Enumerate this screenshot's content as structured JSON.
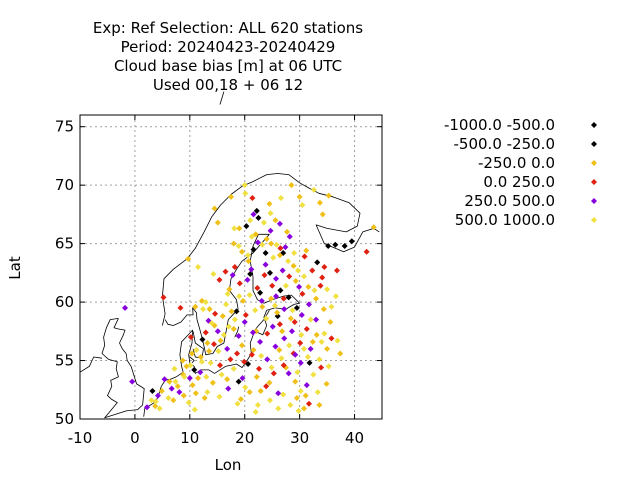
{
  "chart_data": {
    "type": "scatter",
    "title_lines": [
      "Exp: Ref   Selection: ALL    620 stations",
      "Period: 20240423-20240429",
      "Cloud base bias [m] at  06 UTC",
      "Used  00,18  + 06 12"
    ],
    "xlabel": "Lon",
    "ylabel": "Lat",
    "xlim": [
      -10,
      45
    ],
    "ylim": [
      50,
      76
    ],
    "xticks": [
      -10,
      0,
      10,
      20,
      30,
      40
    ],
    "yticks": [
      50,
      55,
      60,
      65,
      70,
      75
    ],
    "grid": true,
    "legend_position": "right",
    "series": [
      {
        "name": "-1000.0 -500.0",
        "color": "#000000",
        "points": [
          [
            22.5,
            67.2
          ],
          [
            23.8,
            64.2
          ],
          [
            35.2,
            64.8
          ],
          [
            38.2,
            64.8
          ],
          [
            39.5,
            65.2
          ],
          [
            3.2,
            52.4
          ],
          [
            20.3,
            66.5
          ],
          [
            26.5,
            61.0
          ],
          [
            28.0,
            60.4
          ],
          [
            22.8,
            60.8
          ],
          [
            29.5,
            59.5
          ],
          [
            26.0,
            58.8
          ],
          [
            21.0,
            62.4
          ],
          [
            18.5,
            59.2
          ]
        ]
      },
      {
        "name": "-500.0 -250.0",
        "color": "#000000",
        "points": [
          [
            22.2,
            67.8
          ],
          [
            36.5,
            64.9
          ],
          [
            33.2,
            63.4
          ],
          [
            21.6,
            64.5
          ],
          [
            27.0,
            64.2
          ],
          [
            12.3,
            56.8
          ],
          [
            10.8,
            54.2
          ],
          [
            20.6,
            54.7
          ],
          [
            24.6,
            62.5
          ],
          [
            31.8,
            54.8
          ],
          [
            18.9,
            53.2
          ]
        ]
      },
      {
        "name": "-250.0 0.0",
        "color": "#f0c018",
        "points": [
          [
            24.5,
            68.4
          ],
          [
            25.6,
            67.0
          ],
          [
            27.7,
            66.0
          ],
          [
            33.7,
            68.5
          ],
          [
            34.2,
            67.5
          ],
          [
            35.3,
            69.1
          ],
          [
            43.5,
            66.4
          ],
          [
            19.0,
            66.3
          ],
          [
            18.0,
            65.0
          ],
          [
            22.0,
            65.8
          ],
          [
            24.0,
            65.4
          ],
          [
            26.4,
            64.0
          ],
          [
            28.9,
            63.1
          ],
          [
            9.7,
            63.7
          ],
          [
            11.0,
            59.6
          ],
          [
            12.2,
            60.1
          ],
          [
            13.6,
            59.4
          ],
          [
            16.0,
            58.8
          ],
          [
            17.6,
            59.2
          ],
          [
            14.5,
            58.0
          ],
          [
            13.2,
            56.5
          ],
          [
            15.6,
            56.7
          ],
          [
            10.4,
            55.6
          ],
          [
            12.0,
            55.3
          ],
          [
            8.7,
            55.0
          ],
          [
            9.4,
            54.5
          ],
          [
            6.3,
            53.2
          ],
          [
            4.9,
            52.4
          ],
          [
            7.0,
            51.6
          ],
          [
            7.8,
            52.8
          ],
          [
            8.9,
            52.0
          ],
          [
            10.5,
            52.9
          ],
          [
            11.5,
            53.5
          ],
          [
            12.7,
            51.8
          ],
          [
            14.2,
            53.1
          ],
          [
            16.8,
            53.4
          ],
          [
            19.3,
            51.7
          ],
          [
            20.9,
            52.3
          ],
          [
            22.9,
            52.4
          ],
          [
            24.5,
            53.1
          ],
          [
            26.3,
            55.9
          ],
          [
            27.5,
            54.4
          ],
          [
            29.2,
            53.2
          ],
          [
            31.1,
            52.0
          ],
          [
            30.8,
            50.9
          ],
          [
            29.5,
            51.8
          ],
          [
            33.6,
            51.2
          ],
          [
            34.9,
            53.0
          ],
          [
            35.0,
            56.0
          ],
          [
            33.1,
            57.2
          ],
          [
            32.4,
            56.6
          ],
          [
            34.4,
            59.4
          ],
          [
            35.6,
            58.3
          ],
          [
            33.0,
            60.3
          ],
          [
            31.6,
            61.3
          ],
          [
            29.3,
            61.8
          ],
          [
            28.4,
            58.6
          ],
          [
            26.8,
            57.5
          ],
          [
            25.9,
            59.1
          ],
          [
            24.8,
            60.3
          ],
          [
            23.2,
            59.6
          ],
          [
            22.1,
            57.5
          ],
          [
            21.6,
            55.9
          ],
          [
            19.5,
            56.3
          ],
          [
            18.0,
            57.7
          ],
          [
            17.2,
            61.1
          ],
          [
            19.7,
            60.1
          ],
          [
            20.7,
            63.5
          ],
          [
            19.5,
            64.3
          ],
          [
            30.0,
            69.0
          ],
          [
            28.5,
            70.0
          ],
          [
            14.5,
            68.0
          ],
          [
            15.1,
            66.8
          ],
          [
            17.5,
            69.0
          ],
          [
            31.2,
            64.4
          ],
          [
            24.8,
            65.0
          ],
          [
            8.8,
            53.8
          ],
          [
            11.1,
            52.2
          ],
          [
            3.7,
            51.1
          ],
          [
            13.5,
            55.8
          ],
          [
            22.2,
            53.6
          ],
          [
            37.4,
            55.6
          ]
        ]
      },
      {
        "name": "0.0 250.0",
        "color": "#e02010",
        "points": [
          [
            21.4,
            68.9
          ],
          [
            42.2,
            64.3
          ],
          [
            36.8,
            62.7
          ],
          [
            34.1,
            62.1
          ],
          [
            33.8,
            61.4
          ],
          [
            32.3,
            62.7
          ],
          [
            28.1,
            62.2
          ],
          [
            30.5,
            60.7
          ],
          [
            18.2,
            63.0
          ],
          [
            16.5,
            62.6
          ],
          [
            15.4,
            61.9
          ],
          [
            22.3,
            61.2
          ],
          [
            23.6,
            62.3
          ],
          [
            25.0,
            61.4
          ],
          [
            27.1,
            60.3
          ],
          [
            29.1,
            58.3
          ],
          [
            31.3,
            57.7
          ],
          [
            30.1,
            56.5
          ],
          [
            28.9,
            55.6
          ],
          [
            27.1,
            54.6
          ],
          [
            25.3,
            53.9
          ],
          [
            23.9,
            52.8
          ],
          [
            22.6,
            54.3
          ],
          [
            21.3,
            55.5
          ],
          [
            19.9,
            54.9
          ],
          [
            18.6,
            55.6
          ],
          [
            17.4,
            55.1
          ],
          [
            15.5,
            54.6
          ],
          [
            14.4,
            56.4
          ],
          [
            12.9,
            57.4
          ],
          [
            10.2,
            57.0
          ],
          [
            5.2,
            60.4
          ],
          [
            8.3,
            59.5
          ],
          [
            31.7,
            51.3
          ],
          [
            33.9,
            54.4
          ],
          [
            35.8,
            56.9
          ],
          [
            26.4,
            58.1
          ],
          [
            20.2,
            58.9
          ],
          [
            24.1,
            57.3
          ],
          [
            30.9,
            63.9
          ],
          [
            26.5,
            64.6
          ],
          [
            19.1,
            61.6
          ],
          [
            14.6,
            59.0
          ],
          [
            34.5,
            63.0
          ]
        ]
      },
      {
        "name": "250.0 500.0",
        "color": "#8800dd",
        "points": [
          [
            21.6,
            67.5
          ],
          [
            24.7,
            66.1
          ],
          [
            28.2,
            65.6
          ],
          [
            27.4,
            64.7
          ],
          [
            26.4,
            66.7
          ],
          [
            23.8,
            63.2
          ],
          [
            25.7,
            62.0
          ],
          [
            21.2,
            62.8
          ],
          [
            20.5,
            61.9
          ],
          [
            17.8,
            62.3
          ],
          [
            23.1,
            60.1
          ],
          [
            25.7,
            60.5
          ],
          [
            27.2,
            59.4
          ],
          [
            29.9,
            61.3
          ],
          [
            31.7,
            59.8
          ],
          [
            33.0,
            58.5
          ],
          [
            30.4,
            58.9
          ],
          [
            28.6,
            57.5
          ],
          [
            27.2,
            56.9
          ],
          [
            25.6,
            56.2
          ],
          [
            24.1,
            55.1
          ],
          [
            22.8,
            56.6
          ],
          [
            21.5,
            57.4
          ],
          [
            20.0,
            58.3
          ],
          [
            18.9,
            57.1
          ],
          [
            16.8,
            56.0
          ],
          [
            15.1,
            57.5
          ],
          [
            13.4,
            58.4
          ],
          [
            11.9,
            54.0
          ],
          [
            10.0,
            53.5
          ],
          [
            8.1,
            52.3
          ],
          [
            6.7,
            52.6
          ],
          [
            5.4,
            53.4
          ],
          [
            4.2,
            52.0
          ],
          [
            2.2,
            51.0
          ],
          [
            -0.5,
            53.2
          ],
          [
            -1.8,
            59.5
          ],
          [
            17.0,
            52.6
          ],
          [
            19.6,
            53.5
          ],
          [
            26.1,
            52.2
          ],
          [
            28.0,
            53.9
          ],
          [
            30.2,
            54.8
          ],
          [
            31.3,
            52.9
          ],
          [
            32.0,
            56.0
          ],
          [
            26.9,
            62.7
          ],
          [
            22.4,
            65.1
          ],
          [
            25.1,
            57.9
          ],
          [
            29.2,
            55.5
          ]
        ]
      },
      {
        "name": "500.0 1000.0",
        "color": "#f0e040",
        "points": [
          [
            26.6,
            68.9
          ],
          [
            32.6,
            69.6
          ],
          [
            20.1,
            69.3
          ],
          [
            21.0,
            67.0
          ],
          [
            23.5,
            66.8
          ],
          [
            18.9,
            64.8
          ],
          [
            20.6,
            64.0
          ],
          [
            23.2,
            64.9
          ],
          [
            25.2,
            63.8
          ],
          [
            27.9,
            63.5
          ],
          [
            29.7,
            62.7
          ],
          [
            30.8,
            62.2
          ],
          [
            32.7,
            61.0
          ],
          [
            35.0,
            61.1
          ],
          [
            12.9,
            60.0
          ],
          [
            12.4,
            59.4
          ],
          [
            14.0,
            58.2
          ],
          [
            16.2,
            57.2
          ],
          [
            17.1,
            57.9
          ],
          [
            15.2,
            55.8
          ],
          [
            13.8,
            54.8
          ],
          [
            12.2,
            54.9
          ],
          [
            11.2,
            55.9
          ],
          [
            10.1,
            54.6
          ],
          [
            9.0,
            53.6
          ],
          [
            7.4,
            53.2
          ],
          [
            6.1,
            51.8
          ],
          [
            4.5,
            50.9
          ],
          [
            3.0,
            51.6
          ],
          [
            9.8,
            51.4
          ],
          [
            13.2,
            52.3
          ],
          [
            15.8,
            53.8
          ],
          [
            18.0,
            54.3
          ],
          [
            20.1,
            52.7
          ],
          [
            22.4,
            51.2
          ],
          [
            24.6,
            51.6
          ],
          [
            27.0,
            52.1
          ],
          [
            28.3,
            51.2
          ],
          [
            30.2,
            52.4
          ],
          [
            32.5,
            53.8
          ],
          [
            33.6,
            55.1
          ],
          [
            34.5,
            57.3
          ],
          [
            35.8,
            59.6
          ],
          [
            36.6,
            60.5
          ],
          [
            34.0,
            56.6
          ],
          [
            32.0,
            58.5
          ],
          [
            30.3,
            57.2
          ],
          [
            28.7,
            59.3
          ],
          [
            27.5,
            61.4
          ],
          [
            25.5,
            59.7
          ],
          [
            23.9,
            58.6
          ],
          [
            21.9,
            59.3
          ],
          [
            20.9,
            60.6
          ],
          [
            19.0,
            60.5
          ],
          [
            18.2,
            58.5
          ],
          [
            16.6,
            59.8
          ],
          [
            23.0,
            55.4
          ],
          [
            24.9,
            54.4
          ],
          [
            26.7,
            55.2
          ],
          [
            28.1,
            56.3
          ],
          [
            29.6,
            54.0
          ],
          [
            31.5,
            55.3
          ],
          [
            21.3,
            65.6
          ],
          [
            24.7,
            67.6
          ],
          [
            30.5,
            68.3
          ],
          [
            20.0,
            70.0
          ],
          [
            25.8,
            64.9
          ],
          [
            29.0,
            64.2
          ],
          [
            11.5,
            63.0
          ],
          [
            14.3,
            62.4
          ],
          [
            18.1,
            66.3
          ],
          [
            16.9,
            60.7
          ],
          [
            13.0,
            53.6
          ],
          [
            7.2,
            54.3
          ],
          [
            3.8,
            51.5
          ],
          [
            35.3,
            54.5
          ],
          [
            33.3,
            52.3
          ],
          [
            22.0,
            50.6
          ],
          [
            26.1,
            50.9
          ],
          [
            29.8,
            50.7
          ],
          [
            18.7,
            51.3
          ],
          [
            15.4,
            51.9
          ],
          [
            10.9,
            50.8
          ],
          [
            36.9,
            56.7
          ],
          [
            30.8,
            56.0
          ]
        ]
      }
    ]
  }
}
